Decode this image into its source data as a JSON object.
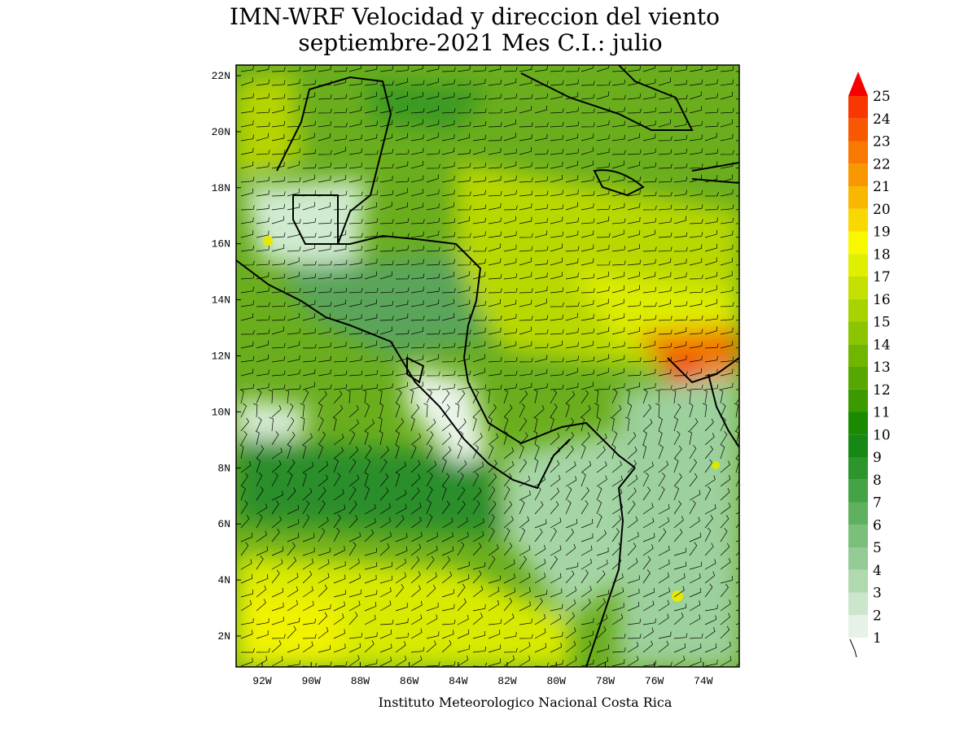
{
  "title": [
    "IMN-WRF Velocidad y direccion del viento",
    "septiembre-2021 Mes C.I.: julio"
  ],
  "map": {
    "lat_labels": [
      "22N",
      "20N",
      "18N",
      "16N",
      "14N",
      "12N",
      "10N",
      "8N",
      "6N",
      "4N",
      "2N"
    ],
    "lon_labels": [
      "92W",
      "90W",
      "88W",
      "86W",
      "84W",
      "82W",
      "80W",
      "78W",
      "76W",
      "74W"
    ]
  },
  "colorbar": {
    "levels": [
      1,
      2,
      3,
      4,
      5,
      6,
      7,
      8,
      9,
      10,
      11,
      12,
      13,
      14,
      15,
      16,
      17,
      18,
      19,
      20,
      21,
      22,
      23,
      24,
      25
    ],
    "colors": [
      "#e6f2e6",
      "#cce6cc",
      "#b0d9b0",
      "#95cc95",
      "#7abf7a",
      "#5fb15f",
      "#44a344",
      "#2c952c",
      "#158815",
      "#1a8a00",
      "#3a9a00",
      "#56a800",
      "#70b600",
      "#8cc400",
      "#a8d200",
      "#c4e000",
      "#e0ee00",
      "#f8f800",
      "#f8d800",
      "#f8b800",
      "#f89800",
      "#f87800",
      "#f85800",
      "#f83800",
      "#f80000"
    ]
  },
  "credit": "Instituto Meteorologico Nacional Costa Rica"
}
